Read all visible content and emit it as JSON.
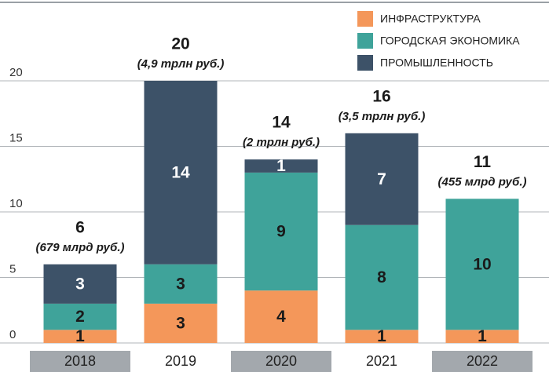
{
  "chart_data": {
    "type": "stacked_bar",
    "categories": [
      "2018",
      "2019",
      "2020",
      "2021",
      "2022"
    ],
    "series": [
      {
        "name": "ИНФРАСТРУКТУРА",
        "color": "#f4975a",
        "values": [
          1,
          3,
          4,
          1,
          1
        ]
      },
      {
        "name": "ГОРОДСКАЯ ЭКОНОМИКА",
        "color": "#3fa39a",
        "values": [
          2,
          3,
          9,
          8,
          10
        ]
      },
      {
        "name": "ПРОМЫШЛЕННОСТЬ",
        "color": "#3d5268",
        "values": [
          3,
          14,
          1,
          7,
          null
        ]
      }
    ],
    "totals": [
      6,
      20,
      14,
      16,
      11
    ],
    "annotations": [
      "(679 млрд руб.)",
      "(4,9 трлн руб.)",
      "(2 трлн руб.)",
      "(3,5 трлн руб.)",
      "(455 млрд руб.)"
    ],
    "ylim": [
      0,
      20
    ],
    "yticks": [
      0,
      5,
      10,
      15,
      20
    ],
    "grid": true,
    "legend": "top-right"
  }
}
